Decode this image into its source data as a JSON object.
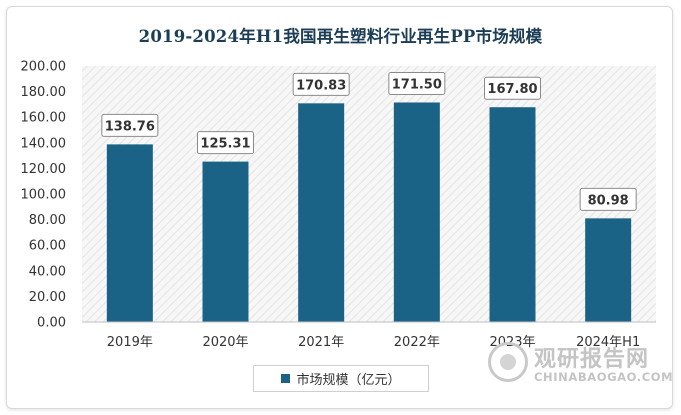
{
  "chart_data": {
    "type": "bar",
    "title": "2019-2024年H1我国再生塑料行业再生PP市场规模",
    "categories": [
      "2019年",
      "2020年",
      "2021年",
      "2022年",
      "2023年",
      "2024年H1"
    ],
    "series": [
      {
        "name": "市场规模（亿元）",
        "values": [
          138.76,
          125.31,
          170.83,
          171.5,
          167.8,
          80.98
        ]
      }
    ],
    "data_labels": [
      "138.76",
      "125.31",
      "170.83",
      "171.50",
      "167.80",
      "80.98"
    ],
    "yticks": [
      "0.00",
      "20.00",
      "40.00",
      "60.00",
      "80.00",
      "100.00",
      "120.00",
      "140.00",
      "160.00",
      "180.00",
      "200.00"
    ],
    "ylim": [
      0,
      200
    ],
    "grid": false,
    "legend_position": "bottom",
    "bar_color": "#1a6387",
    "plot_background": "hatched light gray"
  },
  "watermark": {
    "name_cn": "观研报告网",
    "name_en": "CHINABAOGAO.COM"
  }
}
